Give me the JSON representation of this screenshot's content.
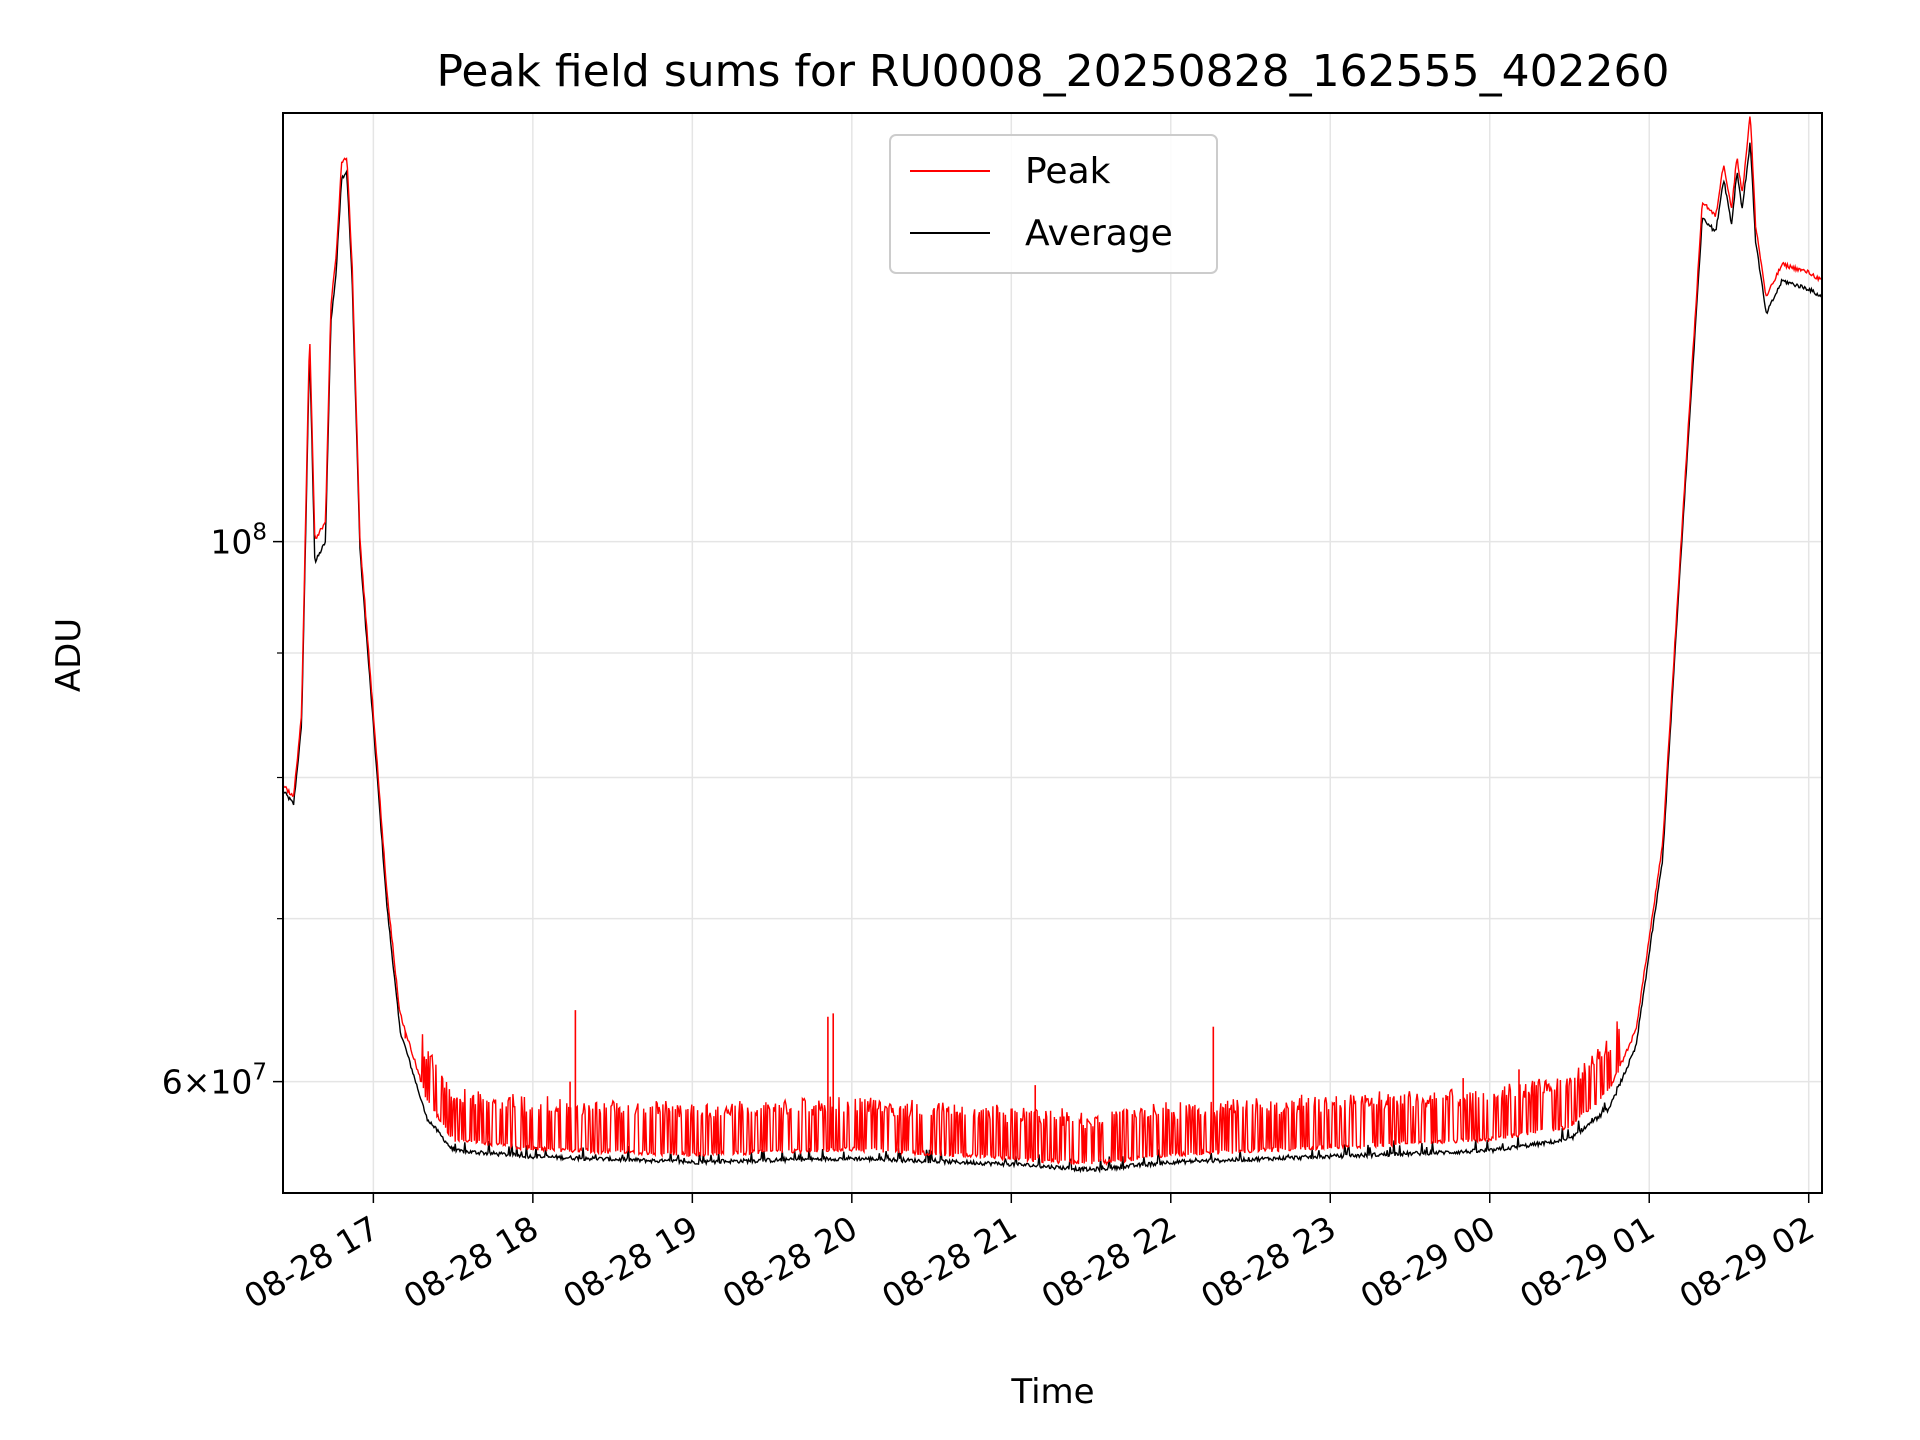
{
  "chart_data": {
    "type": "line",
    "title": "Peak field sums for RU0008_20250828_162555_402260",
    "xlabel": "Time",
    "ylabel": "ADU",
    "y_scale": "log",
    "ylim": [
      54000000,
      150000000
    ],
    "xlim": [
      "2025-08-28 16:26",
      "2025-08-29 02:05"
    ],
    "grid": true,
    "legend_position": "upper center",
    "x_tick_labels": [
      "08-28 17",
      "08-28 18",
      "08-28 19",
      "08-28 20",
      "08-28 21",
      "08-28 22",
      "08-28 23",
      "08-29 00",
      "08-29 01",
      "08-29 02"
    ],
    "x_ticks": [
      "2025-08-28 17:00",
      "2025-08-28 18:00",
      "2025-08-28 19:00",
      "2025-08-28 20:00",
      "2025-08-28 21:00",
      "2025-08-28 22:00",
      "2025-08-28 23:00",
      "2025-08-29 00:00",
      "2025-08-29 01:00",
      "2025-08-29 02:00"
    ],
    "y_ticks": [
      {
        "value": 100000000,
        "label_base": "10",
        "label_exp": "8"
      },
      {
        "value": 60000000,
        "label_mant": "6",
        "label_base": "10",
        "label_exp": "7"
      }
    ],
    "y_minor_ticks": [
      70000000,
      80000000,
      90000000
    ],
    "series": [
      {
        "name": "Peak",
        "color": "#ff0000",
        "points": [
          [
            "2025-08-28 16:26",
            79500000
          ],
          [
            "2025-08-28 16:30",
            78500000
          ],
          [
            "2025-08-28 16:33",
            85000000
          ],
          [
            "2025-08-28 16:36",
            122000000
          ],
          [
            "2025-08-28 16:38",
            100000000
          ],
          [
            "2025-08-28 16:42",
            102000000
          ],
          [
            "2025-08-28 16:44",
            125000000
          ],
          [
            "2025-08-28 16:46",
            131000000
          ],
          [
            "2025-08-28 16:48",
            143000000
          ],
          [
            "2025-08-28 16:50",
            144000000
          ],
          [
            "2025-08-28 16:52",
            130000000
          ],
          [
            "2025-08-28 16:55",
            100000000
          ],
          [
            "2025-08-28 17:00",
            85000000
          ],
          [
            "2025-08-28 17:05",
            72000000
          ],
          [
            "2025-08-28 17:10",
            64000000
          ],
          [
            "2025-08-28 17:20",
            59000000
          ],
          [
            "2025-08-28 17:30",
            56800000
          ],
          [
            "2025-08-28 18:00",
            56300000
          ],
          [
            "2025-08-28 19:00",
            56000000
          ],
          [
            "2025-08-28 20:00",
            56300000
          ],
          [
            "2025-08-28 21:00",
            55800000
          ],
          [
            "2025-08-28 21:30",
            55500000
          ],
          [
            "2025-08-28 22:00",
            56000000
          ],
          [
            "2025-08-28 23:00",
            56400000
          ],
          [
            "2025-08-29 00:00",
            56800000
          ],
          [
            "2025-08-29 00:30",
            57500000
          ],
          [
            "2025-08-29 00:45",
            59500000
          ],
          [
            "2025-08-29 00:55",
            63000000
          ],
          [
            "2025-08-29 01:05",
            75000000
          ],
          [
            "2025-08-29 01:12",
            100000000
          ],
          [
            "2025-08-29 01:20",
            138000000
          ],
          [
            "2025-08-29 01:25",
            136000000
          ],
          [
            "2025-08-29 01:28",
            143000000
          ],
          [
            "2025-08-29 01:31",
            137000000
          ],
          [
            "2025-08-29 01:33",
            144000000
          ],
          [
            "2025-08-29 01:35",
            139000000
          ],
          [
            "2025-08-29 01:38",
            150000000
          ],
          [
            "2025-08-29 01:40",
            135000000
          ],
          [
            "2025-08-29 01:44",
            126000000
          ],
          [
            "2025-08-29 01:50",
            130000000
          ],
          [
            "2025-08-29 02:00",
            129000000
          ],
          [
            "2025-08-29 02:05",
            128000000
          ]
        ],
        "spikes": [
          [
            "2025-08-28 18:14",
            60000000
          ],
          [
            "2025-08-28 18:16",
            64200000
          ],
          [
            "2025-08-28 19:51",
            63800000
          ],
          [
            "2025-08-28 19:53",
            64000000
          ],
          [
            "2025-08-28 21:09",
            59800000
          ],
          [
            "2025-08-28 22:16",
            63200000
          ],
          [
            "2025-08-28 23:50",
            60200000
          ],
          [
            "2025-08-29 00:11",
            60700000
          ],
          [
            "2025-08-28 17:12",
            62500000
          ]
        ]
      },
      {
        "name": "Average",
        "color": "#000000",
        "points": [
          [
            "2025-08-28 16:26",
            79000000
          ],
          [
            "2025-08-28 16:30",
            78000000
          ],
          [
            "2025-08-28 16:33",
            84000000
          ],
          [
            "2025-08-28 16:36",
            120000000
          ],
          [
            "2025-08-28 16:38",
            98000000
          ],
          [
            "2025-08-28 16:42",
            100000000
          ],
          [
            "2025-08-28 16:44",
            123000000
          ],
          [
            "2025-08-28 16:46",
            129000000
          ],
          [
            "2025-08-28 16:48",
            141000000
          ],
          [
            "2025-08-28 16:50",
            142000000
          ],
          [
            "2025-08-28 16:52",
            128000000
          ],
          [
            "2025-08-28 16:55",
            99000000
          ],
          [
            "2025-08-28 17:00",
            84000000
          ],
          [
            "2025-08-28 17:05",
            71000000
          ],
          [
            "2025-08-28 17:10",
            63000000
          ],
          [
            "2025-08-28 17:20",
            58000000
          ],
          [
            "2025-08-28 17:30",
            56200000
          ],
          [
            "2025-08-28 18:00",
            55900000
          ],
          [
            "2025-08-28 19:00",
            55600000
          ],
          [
            "2025-08-28 20:00",
            55800000
          ],
          [
            "2025-08-28 21:00",
            55500000
          ],
          [
            "2025-08-28 21:30",
            55200000
          ],
          [
            "2025-08-28 22:00",
            55600000
          ],
          [
            "2025-08-28 23:00",
            55900000
          ],
          [
            "2025-08-29 00:00",
            56200000
          ],
          [
            "2025-08-29 00:30",
            56800000
          ],
          [
            "2025-08-29 00:45",
            58500000
          ],
          [
            "2025-08-29 00:55",
            62000000
          ],
          [
            "2025-08-29 01:05",
            74000000
          ],
          [
            "2025-08-29 01:12",
            99000000
          ],
          [
            "2025-08-29 01:20",
            136000000
          ],
          [
            "2025-08-29 01:25",
            134000000
          ],
          [
            "2025-08-29 01:28",
            141000000
          ],
          [
            "2025-08-29 01:31",
            135000000
          ],
          [
            "2025-08-29 01:33",
            142000000
          ],
          [
            "2025-08-29 01:35",
            137000000
          ],
          [
            "2025-08-29 01:38",
            146000000
          ],
          [
            "2025-08-29 01:40",
            133000000
          ],
          [
            "2025-08-29 01:44",
            124000000
          ],
          [
            "2025-08-29 01:50",
            128000000
          ],
          [
            "2025-08-29 02:00",
            127000000
          ],
          [
            "2025-08-29 02:05",
            126000000
          ]
        ]
      }
    ]
  }
}
